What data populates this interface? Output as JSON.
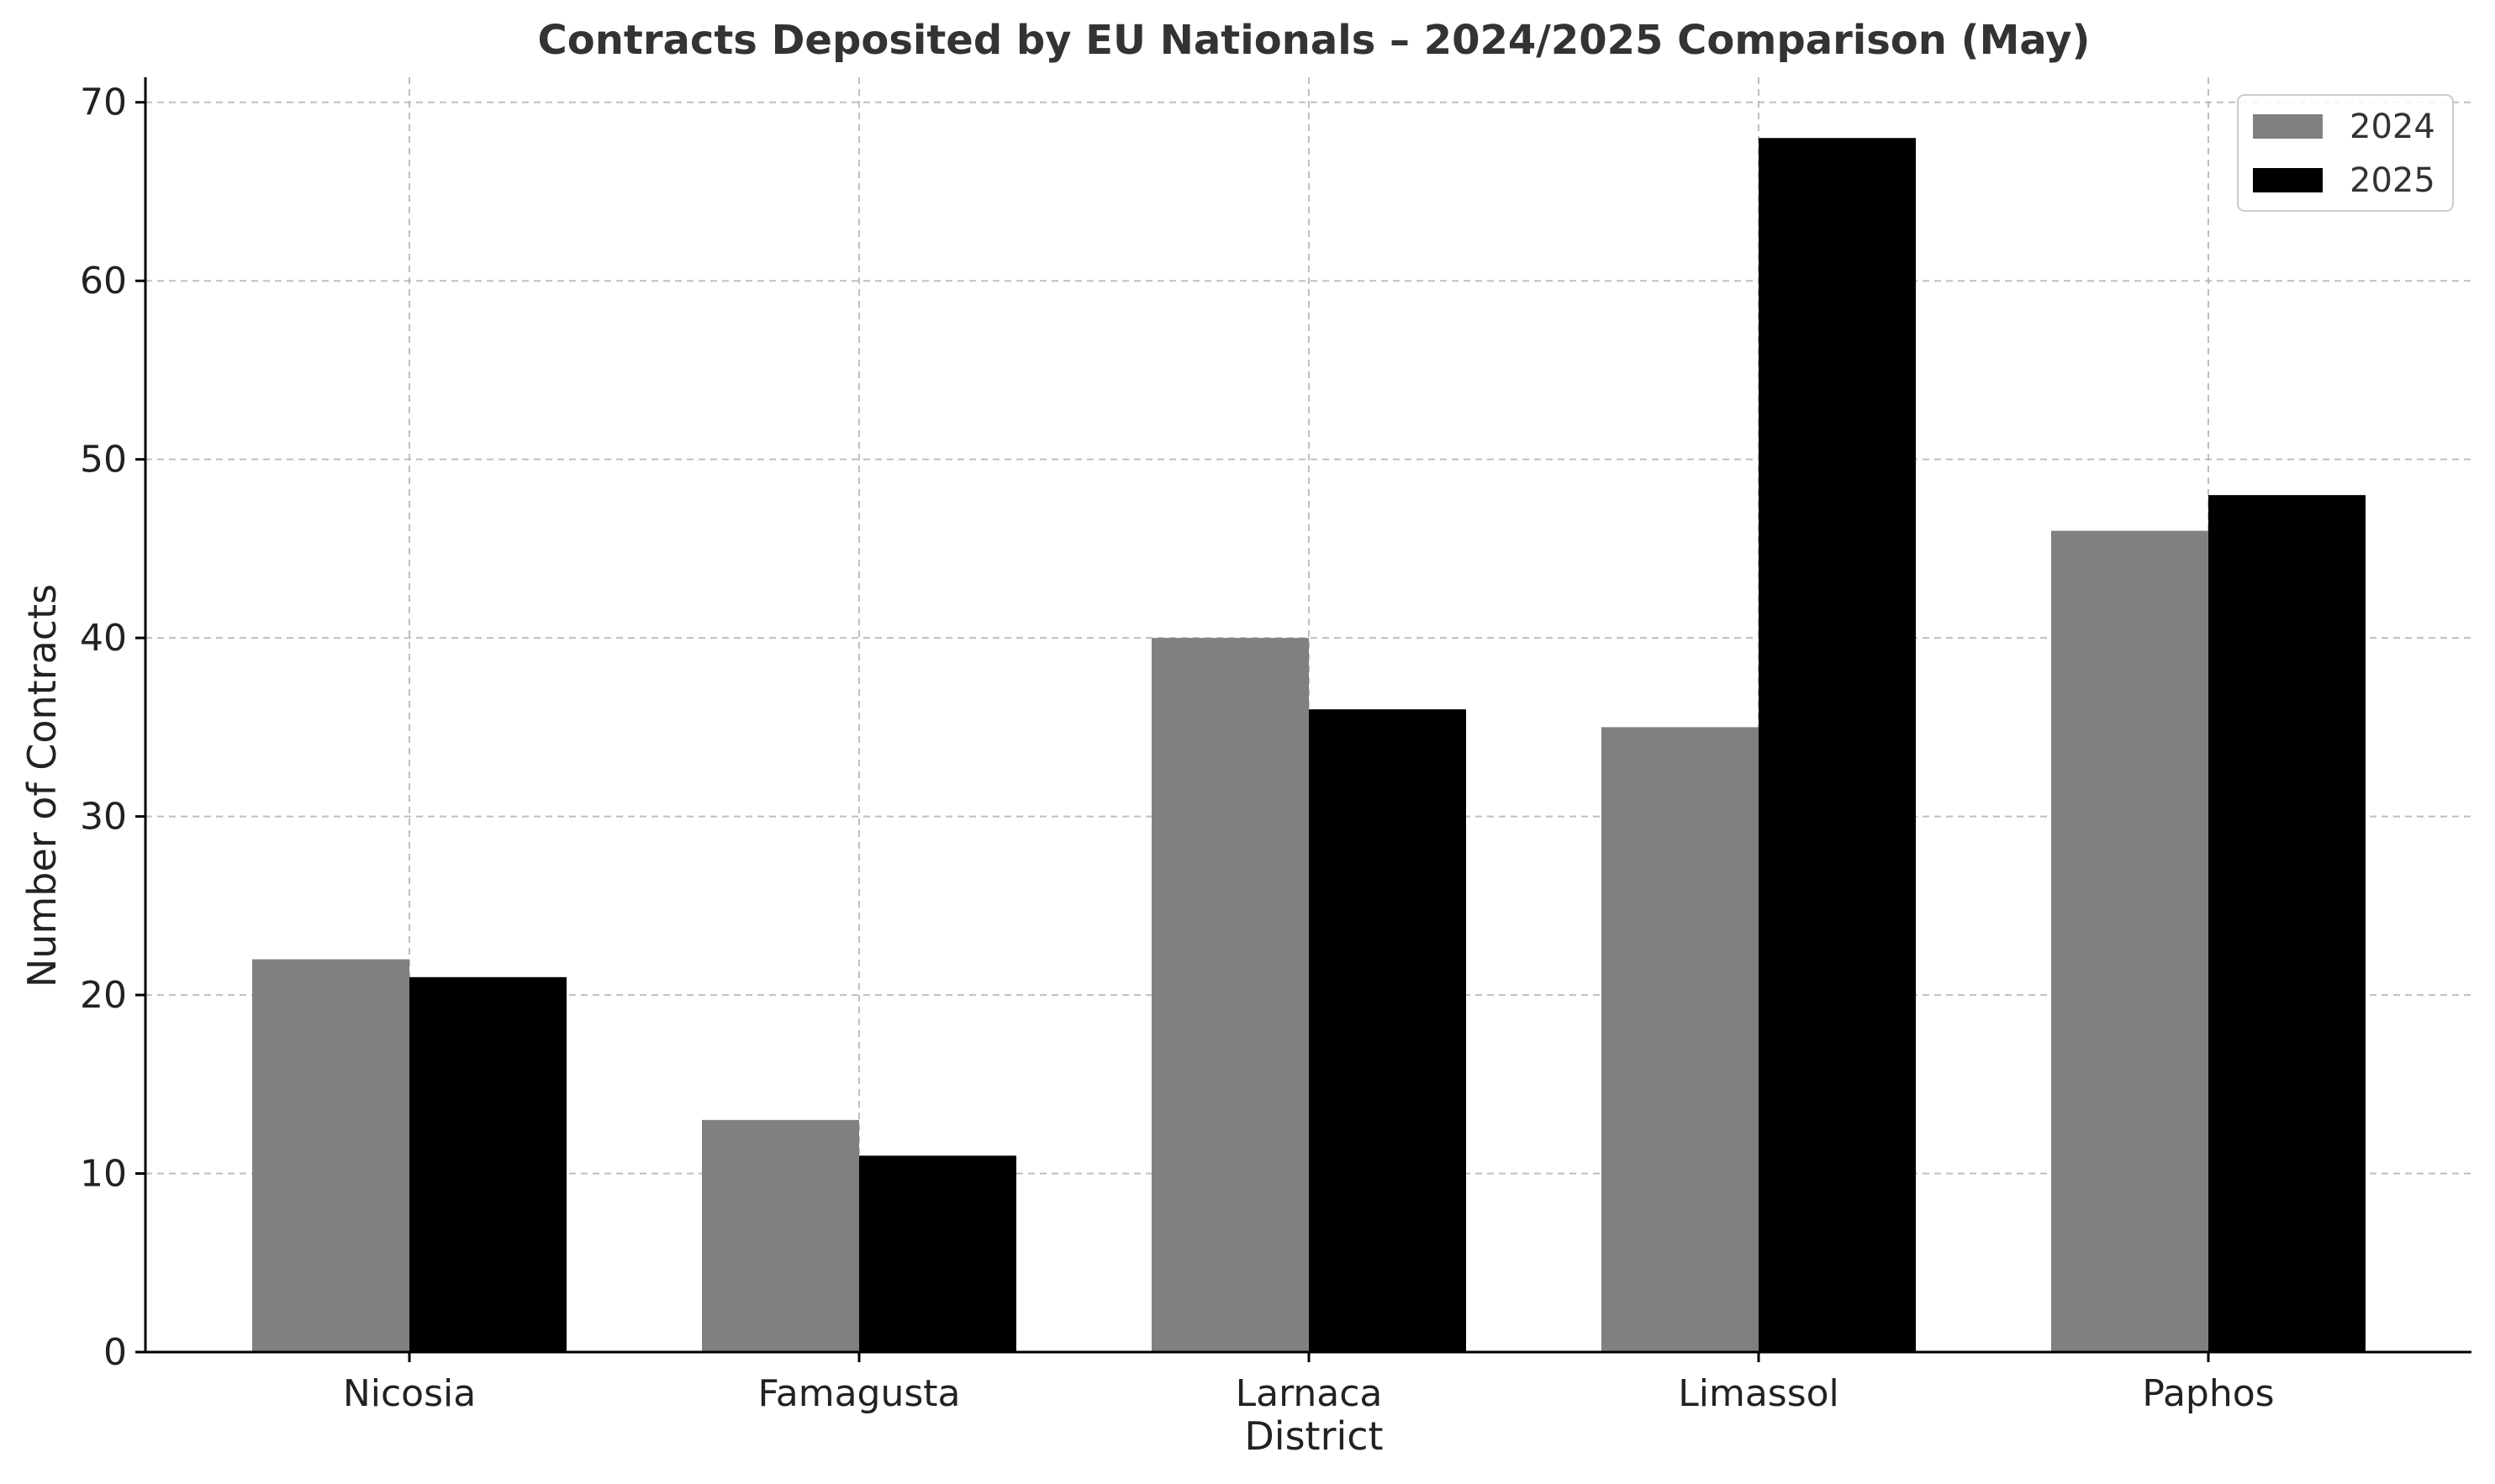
{
  "chart_data": {
    "type": "bar",
    "title": "Contracts Deposited by EU Nationals – 2024/2025 Comparison (May)",
    "xlabel": "District",
    "ylabel": "Number of Contracts",
    "categories": [
      "Nicosia",
      "Famagusta",
      "Larnaca",
      "Limassol",
      "Paphos"
    ],
    "series": [
      {
        "name": "2024",
        "values": [
          22,
          13,
          40,
          35,
          46
        ],
        "color": "#808080"
      },
      {
        "name": "2025",
        "values": [
          21,
          11,
          36,
          68,
          48
        ],
        "color": "#000000"
      }
    ],
    "ylim": [
      0,
      71.4
    ],
    "yticks": [
      0,
      10,
      20,
      30,
      40,
      50,
      60,
      70
    ],
    "grid": true,
    "legend_position": "top-right"
  }
}
